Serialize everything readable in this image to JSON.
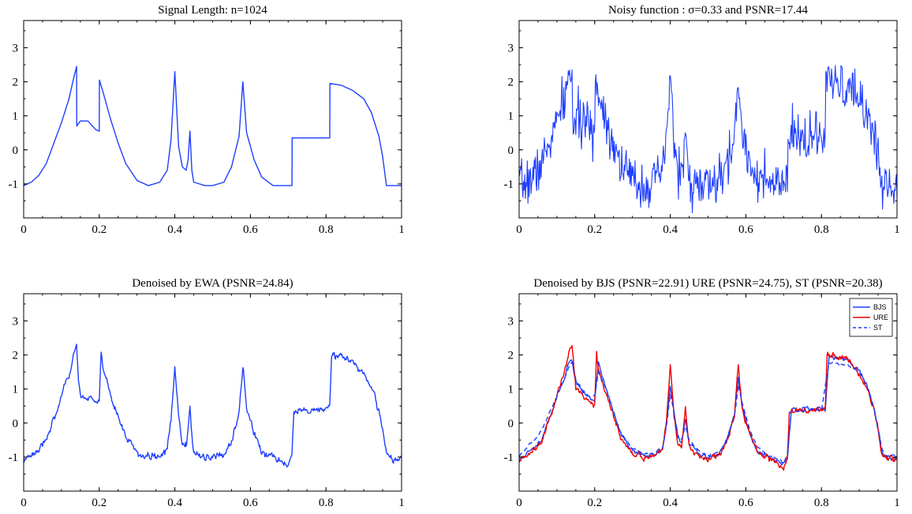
{
  "figure": {
    "colors": {
      "blue": "#1f3fff",
      "red": "#ee0000",
      "axis": "#000000",
      "background": "#ffffff"
    }
  },
  "chart_data": [
    {
      "type": "line",
      "title": "Signal Length: n=1024",
      "xlabel": "",
      "ylabel": "",
      "xlim": [
        0,
        1
      ],
      "ylim": [
        -2,
        3.8
      ],
      "xticks": [
        0,
        0.2,
        0.4,
        0.6,
        0.8,
        1
      ],
      "yticks": [
        -1,
        0,
        1,
        2,
        3
      ],
      "grid": false,
      "series": [
        {
          "color": "#1f3fff",
          "style": "solid",
          "x": [
            0,
            0.02,
            0.04,
            0.06,
            0.08,
            0.1,
            0.12,
            0.13,
            0.14,
            0.1405,
            0.15,
            0.17,
            0.19,
            0.2,
            0.2005,
            0.21,
            0.23,
            0.25,
            0.27,
            0.3,
            0.33,
            0.36,
            0.38,
            0.39,
            0.4,
            0.41,
            0.42,
            0.43,
            0.435,
            0.44,
            0.445,
            0.45,
            0.48,
            0.5,
            0.53,
            0.55,
            0.57,
            0.58,
            0.59,
            0.61,
            0.63,
            0.66,
            0.7,
            0.71,
            0.7105,
            0.81,
            0.8105,
            0.84,
            0.87,
            0.9,
            0.92,
            0.94,
            0.95,
            0.96,
            0.9605,
            1
          ],
          "y": [
            -1.05,
            -0.95,
            -0.75,
            -0.4,
            0.2,
            0.8,
            1.5,
            2.0,
            2.45,
            0.7,
            0.85,
            0.85,
            0.6,
            0.55,
            2.05,
            1.7,
            0.9,
            0.2,
            -0.4,
            -0.9,
            -1.05,
            -0.95,
            -0.6,
            0.3,
            2.3,
            0.1,
            -0.5,
            -0.6,
            -0.3,
            0.55,
            -0.6,
            -0.95,
            -1.05,
            -1.05,
            -0.95,
            -0.5,
            0.4,
            2.0,
            0.5,
            -0.3,
            -0.8,
            -1.05,
            -1.05,
            -1.05,
            0.35,
            0.35,
            1.95,
            1.9,
            1.75,
            1.5,
            1.1,
            0.4,
            -0.2,
            -1.05,
            -1.05,
            -1.05
          ]
        }
      ]
    },
    {
      "type": "line",
      "title": "Noisy function : σ=0.33 and PSNR=17.44",
      "xlabel": "",
      "ylabel": "",
      "xlim": [
        0,
        1
      ],
      "ylim": [
        -2,
        3.8
      ],
      "xticks": [
        0,
        0.2,
        0.4,
        0.6,
        0.8,
        1
      ],
      "yticks": [
        -1,
        0,
        1,
        2,
        3
      ],
      "grid": false,
      "series": [
        {
          "color": "#1f3fff",
          "style": "solid",
          "noise": 0.33,
          "seed": 7,
          "x": [
            0,
            0.02,
            0.04,
            0.06,
            0.08,
            0.1,
            0.12,
            0.13,
            0.14,
            0.1405,
            0.15,
            0.17,
            0.19,
            0.2,
            0.2005,
            0.21,
            0.23,
            0.25,
            0.27,
            0.3,
            0.33,
            0.36,
            0.38,
            0.39,
            0.4,
            0.41,
            0.42,
            0.43,
            0.435,
            0.44,
            0.445,
            0.45,
            0.48,
            0.5,
            0.53,
            0.55,
            0.57,
            0.58,
            0.59,
            0.61,
            0.63,
            0.66,
            0.7,
            0.71,
            0.7105,
            0.81,
            0.8105,
            0.84,
            0.87,
            0.9,
            0.92,
            0.94,
            0.95,
            0.96,
            0.9605,
            1
          ],
          "y": [
            -1.05,
            -0.95,
            -0.75,
            -0.4,
            0.2,
            0.8,
            1.5,
            2.0,
            2.45,
            0.7,
            0.85,
            0.85,
            0.6,
            0.55,
            2.05,
            1.7,
            0.9,
            0.2,
            -0.4,
            -0.9,
            -1.05,
            -0.95,
            -0.6,
            0.3,
            2.3,
            0.1,
            -0.5,
            -0.6,
            -0.3,
            0.55,
            -0.6,
            -0.95,
            -1.05,
            -1.05,
            -0.95,
            -0.5,
            0.4,
            2.0,
            0.5,
            -0.3,
            -0.8,
            -1.05,
            -1.05,
            -1.05,
            0.35,
            0.35,
            1.95,
            1.9,
            1.75,
            1.5,
            1.1,
            0.4,
            -0.2,
            -1.05,
            -1.05,
            -1.05
          ]
        }
      ]
    },
    {
      "type": "line",
      "title": "Denoised by EWA (PSNR=24.84)",
      "xlabel": "",
      "ylabel": "",
      "xlim": [
        0,
        1
      ],
      "ylim": [
        -2,
        3.8
      ],
      "xticks": [
        0,
        0.2,
        0.4,
        0.6,
        0.8,
        1
      ],
      "yticks": [
        -1,
        0,
        1,
        2,
        3
      ],
      "grid": false,
      "series": [
        {
          "color": "#1f3fff",
          "style": "solid",
          "noise": 0.07,
          "seed": 3,
          "x": [
            0,
            0.02,
            0.04,
            0.06,
            0.08,
            0.1,
            0.12,
            0.13,
            0.14,
            0.145,
            0.15,
            0.17,
            0.19,
            0.2,
            0.205,
            0.21,
            0.23,
            0.25,
            0.27,
            0.3,
            0.33,
            0.36,
            0.38,
            0.39,
            0.4,
            0.41,
            0.42,
            0.43,
            0.435,
            0.44,
            0.445,
            0.45,
            0.48,
            0.5,
            0.53,
            0.55,
            0.57,
            0.58,
            0.59,
            0.61,
            0.63,
            0.66,
            0.7,
            0.71,
            0.715,
            0.81,
            0.815,
            0.84,
            0.87,
            0.9,
            0.92,
            0.94,
            0.95,
            0.96,
            0.965,
            1
          ],
          "y": [
            -1.1,
            -0.9,
            -0.75,
            -0.45,
            0.1,
            0.75,
            1.4,
            1.85,
            2.25,
            1.3,
            0.85,
            0.75,
            0.65,
            0.6,
            2.05,
            1.6,
            0.8,
            0.2,
            -0.45,
            -0.85,
            -1.0,
            -0.95,
            -0.75,
            0.1,
            1.65,
            0.2,
            -0.6,
            -0.7,
            -0.2,
            0.45,
            -0.4,
            -0.85,
            -1.05,
            -1.05,
            -0.9,
            -0.55,
            0.3,
            1.65,
            0.4,
            -0.3,
            -0.85,
            -1.0,
            -1.25,
            -1.0,
            0.35,
            0.4,
            1.95,
            1.95,
            1.8,
            1.5,
            1.05,
            0.4,
            -0.2,
            -0.9,
            -1.05,
            -1.05
          ]
        }
      ]
    },
    {
      "type": "line",
      "title": "Denoised by BJS (PSNR=22.91) URE (PSNR=24.75), ST (PSNR=20.38)",
      "xlabel": "",
      "ylabel": "",
      "xlim": [
        0,
        1
      ],
      "ylim": [
        -2,
        3.8
      ],
      "xticks": [
        0,
        0.2,
        0.4,
        0.6,
        0.8,
        1
      ],
      "yticks": [
        -1,
        0,
        1,
        2,
        3
      ],
      "grid": false,
      "legend": {
        "position": "top-right",
        "entries": [
          "BJS",
          "URE",
          "ST"
        ]
      },
      "series": [
        {
          "name": "BJS",
          "color": "#1f3fff",
          "style": "solid",
          "noise": 0.04,
          "seed": 11,
          "x": [
            0,
            0.02,
            0.04,
            0.06,
            0.08,
            0.1,
            0.12,
            0.13,
            0.14,
            0.15,
            0.17,
            0.19,
            0.2,
            0.21,
            0.23,
            0.25,
            0.27,
            0.3,
            0.33,
            0.36,
            0.38,
            0.39,
            0.4,
            0.41,
            0.42,
            0.43,
            0.44,
            0.45,
            0.48,
            0.5,
            0.53,
            0.55,
            0.57,
            0.58,
            0.59,
            0.61,
            0.63,
            0.66,
            0.7,
            0.71,
            0.72,
            0.81,
            0.82,
            0.84,
            0.87,
            0.9,
            0.92,
            0.94,
            0.95,
            0.96,
            0.97,
            1
          ],
          "y": [
            -1.1,
            -0.9,
            -0.75,
            -0.45,
            0.15,
            0.75,
            1.35,
            1.75,
            1.85,
            1.2,
            0.9,
            0.7,
            0.7,
            1.8,
            1.0,
            0.3,
            -0.35,
            -0.8,
            -0.95,
            -0.95,
            -0.75,
            0.0,
            1.1,
            0.3,
            -0.4,
            -0.6,
            0.1,
            -0.6,
            -0.95,
            -1.0,
            -0.9,
            -0.5,
            0.3,
            1.35,
            0.5,
            -0.3,
            -0.8,
            -1.0,
            -1.2,
            -1.0,
            0.4,
            0.4,
            1.95,
            1.95,
            1.85,
            1.55,
            1.1,
            0.4,
            -0.2,
            -0.85,
            -1.0,
            -1.0
          ]
        },
        {
          "name": "URE",
          "color": "#ee0000",
          "style": "solid",
          "noise": 0.06,
          "seed": 5,
          "x": [
            0,
            0.02,
            0.04,
            0.06,
            0.08,
            0.1,
            0.12,
            0.13,
            0.14,
            0.15,
            0.17,
            0.19,
            0.2,
            0.205,
            0.21,
            0.23,
            0.25,
            0.27,
            0.3,
            0.33,
            0.36,
            0.38,
            0.39,
            0.4,
            0.41,
            0.42,
            0.43,
            0.44,
            0.45,
            0.48,
            0.5,
            0.53,
            0.55,
            0.57,
            0.58,
            0.59,
            0.61,
            0.63,
            0.66,
            0.7,
            0.71,
            0.715,
            0.81,
            0.815,
            0.84,
            0.87,
            0.9,
            0.92,
            0.94,
            0.95,
            0.96,
            0.97,
            1
          ],
          "y": [
            -1.15,
            -0.95,
            -0.75,
            -0.45,
            0.1,
            0.8,
            1.5,
            2.0,
            2.3,
            1.1,
            0.8,
            0.65,
            0.6,
            2.1,
            1.55,
            0.8,
            0.2,
            -0.45,
            -0.85,
            -1.0,
            -0.95,
            -0.75,
            0.1,
            1.75,
            0.2,
            -0.6,
            -0.7,
            0.45,
            -0.75,
            -1.05,
            -1.05,
            -0.9,
            -0.55,
            0.3,
            1.75,
            0.4,
            -0.3,
            -0.85,
            -1.05,
            -1.35,
            -1.0,
            0.35,
            0.4,
            2.0,
            2.0,
            1.85,
            1.5,
            1.05,
            0.4,
            -0.2,
            -0.95,
            -1.05,
            -1.0
          ]
        },
        {
          "name": "ST",
          "color": "#1f3fff",
          "style": "dashed",
          "noise": 0.02,
          "seed": 19,
          "x": [
            0,
            0.02,
            0.04,
            0.06,
            0.08,
            0.1,
            0.12,
            0.13,
            0.14,
            0.15,
            0.17,
            0.19,
            0.2,
            0.21,
            0.23,
            0.25,
            0.27,
            0.3,
            0.33,
            0.36,
            0.38,
            0.39,
            0.4,
            0.41,
            0.42,
            0.43,
            0.44,
            0.45,
            0.48,
            0.5,
            0.53,
            0.55,
            0.57,
            0.58,
            0.59,
            0.61,
            0.63,
            0.66,
            0.7,
            0.71,
            0.72,
            0.8,
            0.82,
            0.84,
            0.87,
            0.9,
            0.92,
            0.94,
            0.95,
            0.96,
            0.97,
            1
          ],
          "y": [
            -1.0,
            -0.7,
            -0.5,
            -0.2,
            0.3,
            0.8,
            1.3,
            1.6,
            1.8,
            1.3,
            0.9,
            0.75,
            0.8,
            1.5,
            1.0,
            0.3,
            -0.3,
            -0.75,
            -0.9,
            -0.9,
            -0.7,
            -0.1,
            0.85,
            0.3,
            -0.35,
            -0.5,
            -0.1,
            -0.5,
            -0.85,
            -0.95,
            -0.85,
            -0.5,
            0.2,
            1.1,
            0.6,
            -0.2,
            -0.7,
            -0.95,
            -1.15,
            -0.9,
            0.35,
            0.4,
            1.75,
            1.75,
            1.7,
            1.5,
            1.1,
            0.4,
            -0.2,
            -0.75,
            -0.95,
            -0.95
          ]
        }
      ]
    }
  ]
}
